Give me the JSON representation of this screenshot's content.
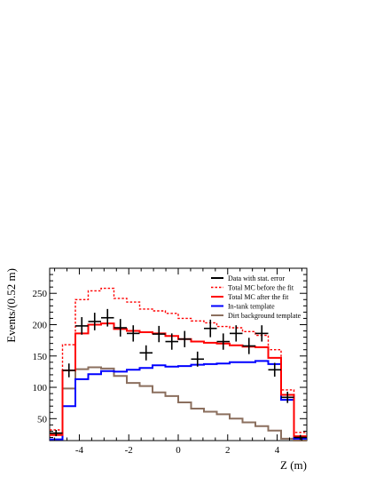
{
  "chart_data": {
    "type": "line",
    "title": "",
    "xlabel": "Z (m)",
    "ylabel": "Events/(0.52 m)",
    "xlim": [
      -5.2,
      5.2
    ],
    "ylim": [
      15,
      290
    ],
    "grid": false,
    "legend_position": "top-right",
    "x_ticks": [
      -4,
      -2,
      0,
      2,
      4
    ],
    "x_tick_labels": [
      "-4",
      "-2",
      "0",
      "2",
      "4"
    ],
    "y_ticks": [
      50,
      100,
      150,
      200,
      250
    ],
    "y_tick_labels": [
      "50",
      "100",
      "150",
      "200",
      "250"
    ],
    "bin_edges": [
      -5.2,
      -4.68,
      -4.16,
      -3.64,
      -3.12,
      -2.6,
      -2.08,
      -1.56,
      -1.04,
      -0.52,
      0.0,
      0.52,
      1.04,
      1.56,
      2.08,
      2.6,
      3.12,
      3.64,
      4.16,
      4.68,
      5.2
    ],
    "data": {
      "name": "Data with stat. error",
      "x": [
        -4.94,
        -4.42,
        -3.9,
        -3.38,
        -2.86,
        -2.34,
        -1.82,
        -1.3,
        -0.78,
        -0.26,
        0.26,
        0.78,
        1.3,
        1.82,
        2.34,
        2.86,
        3.38,
        3.9,
        4.42,
        4.94
      ],
      "y": [
        27,
        127,
        198,
        205,
        211,
        195,
        186,
        155,
        185,
        173,
        177,
        145,
        194,
        173,
        186,
        166,
        186,
        128,
        84,
        20
      ],
      "yerr": [
        5,
        11,
        14,
        14,
        14,
        14,
        13,
        12,
        13,
        13,
        13,
        12,
        14,
        13,
        13,
        13,
        13,
        11,
        9,
        4
      ]
    },
    "series": [
      {
        "name": "Total MC before the fit",
        "color": "#ff0000",
        "style": "dotted",
        "values": [
          32,
          168,
          240,
          254,
          258,
          242,
          236,
          225,
          222,
          218,
          210,
          206,
          203,
          197,
          195,
          189,
          183,
          160,
          96,
          28
        ]
      },
      {
        "name": "Total MC after the fit",
        "color": "#ff0000",
        "style": "solid",
        "values": [
          24,
          127,
          186,
          200,
          202,
          193,
          190,
          188,
          186,
          182,
          177,
          173,
          171,
          170,
          167,
          165,
          164,
          147,
          88,
          22
        ]
      },
      {
        "name": "In-tank template",
        "color": "#0000ff",
        "style": "solid",
        "values": [
          17,
          70,
          113,
          121,
          126,
          125,
          128,
          131,
          135,
          133,
          134,
          136,
          137,
          138,
          140,
          140,
          142,
          137,
          80,
          18
        ]
      },
      {
        "name": "Dirt background template",
        "color": "#8b6f5e",
        "style": "solid",
        "values": [
          26,
          98,
          129,
          132,
          130,
          118,
          107,
          102,
          92,
          86,
          76,
          66,
          61,
          57,
          50,
          44,
          38,
          31,
          18,
          15
        ]
      }
    ]
  }
}
